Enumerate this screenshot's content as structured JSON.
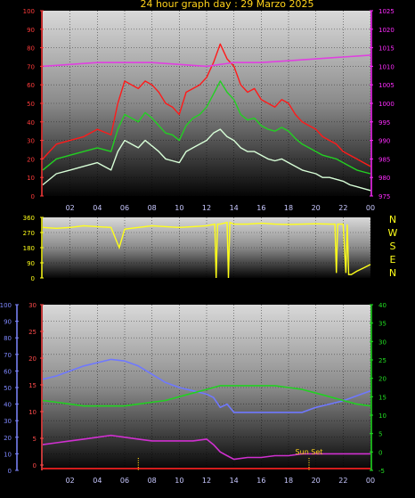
{
  "title": "24 hour graph day : 29 Marzo 2025",
  "colors": {
    "background": "#000000",
    "title": "#ffd21a",
    "wind_speed_axis": "#ff3b3b",
    "pressure_axis": "#ff2bff",
    "direction": "#ffff1a",
    "humidity": "#7f88ff",
    "temp_axis_left": "#ff4a4a",
    "temp_right_axis": "#22e022",
    "solar_marker": "#ffd21a"
  },
  "compass_labels": [
    "N",
    "W",
    "S",
    "E",
    "N"
  ],
  "sun_set_label": "Sun Set",
  "chart_data": [
    {
      "type": "line",
      "name": "wind-pressure",
      "x_ticks": [
        "02",
        "04",
        "06",
        "08",
        "10",
        "12",
        "14",
        "16",
        "18",
        "20",
        "22",
        "00"
      ],
      "x_range": [
        0,
        24
      ],
      "left_axis": {
        "range": [
          0,
          100
        ],
        "ticks": [
          "0",
          "10",
          "20",
          "30",
          "40",
          "50",
          "60",
          "70",
          "80",
          "90",
          "100"
        ]
      },
      "right_axis": {
        "range": [
          975,
          1025
        ],
        "ticks": [
          "975",
          "980",
          "985",
          "990",
          "995",
          "1000",
          "1005",
          "1010",
          "1015",
          "1020",
          "1025"
        ]
      },
      "series": [
        {
          "color": "#ff1a1a",
          "axis": "left",
          "x": [
            0,
            1,
            2,
            3,
            4,
            5,
            5.5,
            6,
            6.5,
            7,
            7.5,
            8,
            8.5,
            9,
            9.5,
            10,
            10.5,
            11,
            11.5,
            12,
            12.5,
            13,
            13.5,
            14,
            14.5,
            15,
            15.5,
            16,
            16.5,
            17,
            17.5,
            18,
            18.5,
            19,
            19.5,
            20,
            20.5,
            21,
            21.5,
            22,
            22.5,
            23,
            23.5,
            24
          ],
          "y": [
            20,
            28,
            30,
            32,
            36,
            33,
            50,
            62,
            60,
            58,
            62,
            60,
            56,
            50,
            48,
            44,
            56,
            58,
            60,
            64,
            72,
            82,
            74,
            70,
            60,
            56,
            58,
            52,
            50,
            48,
            52,
            50,
            44,
            40,
            38,
            36,
            32,
            30,
            28,
            24,
            22,
            20,
            18,
            16
          ]
        },
        {
          "color": "#22d022",
          "axis": "left",
          "x": [
            0,
            1,
            2,
            3,
            4,
            5,
            5.5,
            6,
            6.5,
            7,
            7.5,
            8,
            8.5,
            9,
            9.5,
            10,
            10.5,
            11,
            11.5,
            12,
            12.5,
            13,
            13.5,
            14,
            14.5,
            15,
            15.5,
            16,
            16.5,
            17,
            17.5,
            18,
            18.5,
            19,
            19.5,
            20,
            20.5,
            21,
            21.5,
            22,
            22.5,
            23,
            23.5,
            24
          ],
          "y": [
            14,
            20,
            22,
            24,
            26,
            24,
            36,
            44,
            42,
            40,
            45,
            42,
            38,
            34,
            33,
            30,
            38,
            42,
            44,
            48,
            55,
            62,
            56,
            52,
            44,
            41,
            42,
            38,
            36,
            35,
            37,
            35,
            31,
            28,
            26,
            24,
            22,
            21,
            20,
            18,
            16,
            14,
            13,
            12
          ]
        },
        {
          "color": "#d8ffd8",
          "axis": "left",
          "x": [
            0,
            1,
            2,
            3,
            4,
            5,
            5.5,
            6,
            6.5,
            7,
            7.5,
            8,
            8.5,
            9,
            9.5,
            10,
            10.5,
            11,
            11.5,
            12,
            12.5,
            13,
            13.5,
            14,
            14.5,
            15,
            15.5,
            16,
            16.5,
            17,
            17.5,
            18,
            18.5,
            19,
            19.5,
            20,
            20.5,
            21,
            21.5,
            22,
            22.5,
            23,
            23.5,
            24
          ],
          "y": [
            6,
            12,
            14,
            16,
            18,
            14,
            24,
            30,
            28,
            26,
            30,
            27,
            24,
            20,
            19,
            18,
            24,
            26,
            28,
            30,
            34,
            36,
            32,
            30,
            26,
            24,
            24,
            22,
            20,
            19,
            20,
            18,
            16,
            14,
            13,
            12,
            10,
            10,
            9,
            8,
            6,
            5,
            4,
            3
          ]
        },
        {
          "color": "#e040e0",
          "axis": "right",
          "x": [
            0,
            2,
            4,
            6,
            8,
            10,
            12,
            13,
            14,
            16,
            18,
            20,
            22,
            24
          ],
          "y": [
            1010,
            1010.5,
            1011,
            1011,
            1011,
            1010.5,
            1010,
            1010.5,
            1011,
            1011,
            1011.5,
            1012,
            1012.5,
            1013
          ]
        }
      ]
    },
    {
      "type": "line",
      "name": "wind-direction",
      "x_ticks": [],
      "x_range": [
        0,
        24
      ],
      "left_axis": {
        "range": [
          0,
          360
        ],
        "ticks": [
          "0",
          "90",
          "180",
          "270",
          "360"
        ]
      },
      "series": [
        {
          "color": "#ffff1a",
          "x": [
            0,
            1,
            2,
            3,
            4,
            5,
            5.3,
            5.6,
            6,
            7,
            8,
            9,
            10,
            11,
            12,
            12.6,
            12.7,
            12.8,
            13,
            13.5,
            13.6,
            13.7,
            14,
            15,
            16,
            17,
            18,
            19,
            20,
            21,
            21.4,
            21.5,
            21.6,
            22,
            22.2,
            22.3,
            22.4,
            22.6,
            23,
            23.5,
            24
          ],
          "y": [
            300,
            295,
            300,
            310,
            305,
            300,
            240,
            180,
            290,
            300,
            310,
            305,
            300,
            305,
            310,
            320,
            0,
            320,
            320,
            330,
            0,
            330,
            320,
            320,
            325,
            320,
            318,
            320,
            322,
            320,
            320,
            30,
            320,
            320,
            30,
            320,
            20,
            20,
            40,
            60,
            80
          ]
        }
      ]
    },
    {
      "type": "line",
      "name": "humidity-temperature",
      "x_ticks": [
        "02",
        "04",
        "06",
        "08",
        "10",
        "12",
        "14",
        "16",
        "18",
        "20",
        "22",
        "00"
      ],
      "x_range": [
        0,
        24
      ],
      "humidity_axis": {
        "range": [
          0,
          100
        ],
        "ticks": [
          "0",
          "10",
          "20",
          "30",
          "40",
          "50",
          "60",
          "70",
          "80",
          "90",
          "100"
        ]
      },
      "temp_axis": {
        "range": [
          -1,
          30
        ],
        "ticks": [
          "0",
          "5",
          "10",
          "15",
          "20",
          "25",
          "30"
        ]
      },
      "right_axis": {
        "range": [
          -5,
          40
        ],
        "ticks": [
          "-5",
          "0",
          "5",
          "10",
          "15",
          "20",
          "25",
          "30",
          "35",
          "40"
        ]
      },
      "series": [
        {
          "color": "#6f78ff",
          "axis": "humidity",
          "x": [
            0,
            1,
            2,
            3,
            4,
            5,
            6,
            7,
            8,
            9,
            10,
            11,
            12,
            12.5,
            13,
            13.5,
            14,
            15,
            16,
            17,
            18,
            19,
            20,
            21,
            22,
            23,
            24
          ],
          "y": [
            55,
            57,
            60,
            63,
            65,
            67,
            66,
            63,
            58,
            53,
            50,
            48,
            46,
            44,
            38,
            40,
            35,
            35,
            35,
            35,
            35,
            35,
            38,
            40,
            42,
            45,
            48
          ]
        },
        {
          "color": "#22d022",
          "axis": "right",
          "x": [
            0,
            1,
            2,
            3,
            4,
            5,
            6,
            7,
            8,
            9,
            10,
            11,
            12,
            13,
            14,
            15,
            16,
            17,
            18,
            19,
            20,
            21,
            22,
            23,
            24
          ],
          "y": [
            14,
            13.5,
            13,
            12.5,
            12.5,
            12.5,
            12.5,
            13,
            13.5,
            14,
            15,
            16,
            17,
            18,
            18,
            18,
            18,
            18,
            17.5,
            17,
            16,
            15,
            14,
            13,
            12.5
          ]
        },
        {
          "color": "#d030d0",
          "axis": "right",
          "x": [
            0,
            1,
            2,
            3,
            4,
            5,
            6,
            7,
            8,
            9,
            10,
            11,
            12,
            12.5,
            13,
            13.5,
            14,
            15,
            16,
            17,
            18,
            19,
            20,
            21,
            22,
            23,
            24
          ],
          "y": [
            2,
            2.5,
            3,
            3.5,
            4,
            4.5,
            4,
            3.5,
            3,
            3,
            3,
            3,
            3.5,
            2,
            0,
            -1,
            -2,
            -1.5,
            -1.5,
            -1,
            -1,
            -0.5,
            -0.5,
            -0.5,
            -0.5,
            -0.5,
            -0.5
          ]
        },
        {
          "color": "#ff2020",
          "axis": "right",
          "x": [
            0,
            24
          ],
          "y": [
            -4.5,
            -4.5
          ]
        }
      ],
      "markers": [
        {
          "color": "#ffd21a",
          "x": 7
        },
        {
          "color": "#ffd21a",
          "x": 19.5
        }
      ]
    }
  ]
}
